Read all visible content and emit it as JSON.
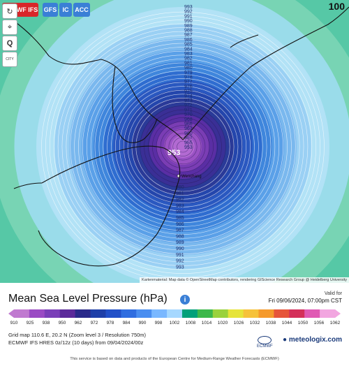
{
  "toolbar": {
    "buttons": [
      {
        "label": "ECMWF IFS",
        "color": "#d8262a"
      },
      {
        "label": "GFS",
        "color": "#3a7fd6"
      },
      {
        "label": "IC",
        "color": "#3a7fd6"
      },
      {
        "label": "ACC",
        "color": "#3a7fd6"
      }
    ],
    "corner_value": "100"
  },
  "sidebar": {
    "items": [
      {
        "icon": "refresh-icon",
        "label": ""
      },
      {
        "icon": "location-pin-icon",
        "label": ""
      },
      {
        "icon": "search-icon",
        "label": "Q"
      },
      {
        "icon": "city-icon",
        "label": "CITY"
      }
    ]
  },
  "map": {
    "center_value": "953",
    "center_city": "Wenchang",
    "isobar_labels": [
      "993",
      "992",
      "991",
      "990",
      "989",
      "988",
      "987",
      "986",
      "985",
      "984",
      "983",
      "982",
      "981",
      "980",
      "979",
      "978",
      "977",
      "976",
      "975",
      "974",
      "973",
      "972",
      "971",
      "970",
      "968",
      "966",
      "963",
      "960",
      "957",
      "955",
      "953"
    ],
    "attribution": "Kartenmaterial: Map data © OpenStreetMap contributors, rendering GIScience Research Group @ Heidelberg University"
  },
  "legend": {
    "title": "Mean Sea Level Pressure (hPa)",
    "valid_label": "Valid for",
    "valid_time": "Fri 09/06/2024, 07:00pm CST",
    "ticks": [
      "910",
      "925",
      "938",
      "950",
      "962",
      "972",
      "978",
      "984",
      "990",
      "998",
      "1002",
      "1008",
      "1014",
      "1020",
      "1026",
      "1032",
      "1038",
      "1044",
      "1050",
      "1056",
      "1062"
    ],
    "colors": [
      "#c07ad0",
      "#9a4bc4",
      "#7a3fb8",
      "#5b2a9a",
      "#2a2a8a",
      "#1e3fa8",
      "#2250c8",
      "#2f6de0",
      "#4a8ef0",
      "#7ab8ff",
      "#a6d8ff",
      "#00a07a",
      "#3cb84a",
      "#9ad23c",
      "#e6e43a",
      "#f6c23a",
      "#f59a2c",
      "#e6553a",
      "#d4305a",
      "#e05ab4",
      "#f2a6e0"
    ],
    "line1": "Grid map 110.6 E, 20.2 N (Zoom level 3 / Resolution 750m)",
    "line2": "ECMWF IFS HRES 0z/12z (10 days) from 09/04/2024/00z",
    "brand": "meteologix.com",
    "ecmwf_label": "ECMWF",
    "footer": "This service is based on data and products of the European Centre for Medium-Range Weather Forecasts (ECMWF)"
  }
}
